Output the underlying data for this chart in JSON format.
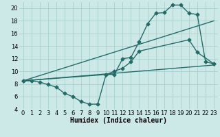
{
  "xlabel": "Humidex (Indice chaleur)",
  "background_color": "#cce9e8",
  "grid_color": "#aacfce",
  "line_color": "#246b68",
  "xlim": [
    -0.5,
    23.5
  ],
  "ylim": [
    4,
    21
  ],
  "yticks": [
    4,
    6,
    8,
    10,
    12,
    14,
    16,
    18,
    20
  ],
  "xticks": [
    0,
    1,
    2,
    3,
    4,
    5,
    6,
    7,
    8,
    9,
    10,
    11,
    12,
    13,
    14,
    15,
    16,
    17,
    18,
    19,
    20,
    21,
    22,
    23
  ],
  "line1_x": [
    0,
    1,
    2,
    3,
    4,
    5,
    6,
    7,
    8,
    9,
    10,
    11,
    12,
    13,
    14,
    15,
    16,
    17,
    18,
    19,
    20,
    21,
    22,
    23
  ],
  "line1_y": [
    8.5,
    8.5,
    8.3,
    7.9,
    7.5,
    6.5,
    6.0,
    5.2,
    4.8,
    4.8,
    9.5,
    9.5,
    12.0,
    12.2,
    14.7,
    17.5,
    19.2,
    19.3,
    20.5,
    20.5,
    19.2,
    19.0,
    11.5,
    11.2
  ],
  "line2_x": [
    0,
    23
  ],
  "line2_y": [
    8.5,
    11.0
  ],
  "line3_x": [
    0,
    23
  ],
  "line3_y": [
    8.5,
    18.0
  ],
  "line4_x": [
    0,
    10,
    11,
    12,
    13,
    14,
    20,
    21,
    23
  ],
  "line4_y": [
    8.5,
    9.5,
    10.0,
    10.5,
    11.5,
    13.2,
    15.0,
    13.0,
    11.2
  ],
  "marker_style": "D",
  "marker_size": 2.5,
  "line_width": 1.0,
  "xlabel_fontsize": 7,
  "tick_fontsize": 6
}
